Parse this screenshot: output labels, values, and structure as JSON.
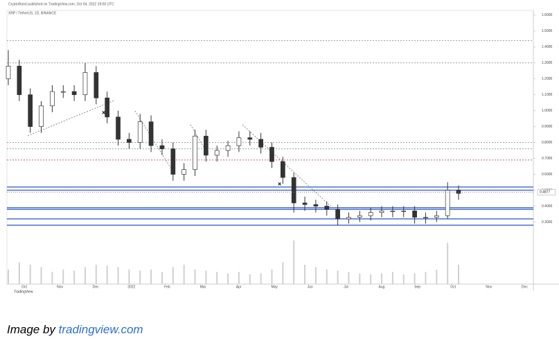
{
  "chart_data": {
    "type": "candlestick",
    "header": "CryptoRand published on TradingView.com, Oct 04, 2022 19:06 UTC",
    "symbol": "XRP / TetherUS, 1D, BINANCE",
    "brand": "TradingView",
    "credit_prefix": "Image by",
    "credit_site": "tradingview.com",
    "open": [
      1.2,
      1.28,
      1.1,
      0.9,
      1.03,
      1.12,
      1.12,
      1.1,
      1.24,
      1.08,
      0.96,
      0.82,
      0.8,
      0.93,
      0.78,
      0.76,
      0.6,
      0.63,
      0.84,
      0.72,
      0.75,
      0.78,
      0.83,
      0.82,
      0.77,
      0.68,
      0.58,
      0.42,
      0.41,
      0.4,
      0.38,
      0.32,
      0.33,
      0.34,
      0.36,
      0.37,
      0.37,
      0.37,
      0.33,
      0.33,
      0.34,
      0.5
    ],
    "high": [
      1.38,
      1.32,
      1.14,
      1.06,
      1.16,
      1.16,
      1.16,
      1.3,
      1.28,
      1.12,
      1.0,
      0.86,
      0.98,
      0.97,
      0.82,
      0.8,
      0.67,
      0.88,
      0.88,
      0.78,
      0.81,
      0.87,
      0.87,
      0.86,
      0.8,
      0.71,
      0.61,
      0.46,
      0.44,
      0.43,
      0.41,
      0.36,
      0.37,
      0.39,
      0.4,
      0.4,
      0.4,
      0.4,
      0.36,
      0.37,
      0.55,
      0.53
    ],
    "low": [
      1.16,
      1.06,
      0.86,
      0.86,
      0.99,
      1.08,
      1.06,
      1.06,
      1.04,
      0.92,
      0.78,
      0.76,
      0.76,
      0.74,
      0.72,
      0.56,
      0.56,
      0.59,
      0.68,
      0.68,
      0.71,
      0.74,
      0.78,
      0.73,
      0.64,
      0.54,
      0.36,
      0.37,
      0.36,
      0.34,
      0.28,
      0.29,
      0.3,
      0.31,
      0.33,
      0.33,
      0.33,
      0.29,
      0.29,
      0.3,
      0.32,
      0.44
    ],
    "close": [
      1.28,
      1.1,
      0.9,
      1.03,
      1.12,
      1.12,
      1.1,
      1.24,
      1.08,
      0.96,
      0.82,
      0.8,
      0.93,
      0.78,
      0.76,
      0.6,
      0.63,
      0.84,
      0.72,
      0.75,
      0.78,
      0.83,
      0.82,
      0.77,
      0.68,
      0.58,
      0.42,
      0.41,
      0.4,
      0.38,
      0.32,
      0.33,
      0.34,
      0.36,
      0.37,
      0.37,
      0.37,
      0.33,
      0.33,
      0.34,
      0.5,
      0.48
    ],
    "volume": [
      30,
      45,
      40,
      35,
      25,
      30,
      28,
      35,
      40,
      38,
      35,
      30,
      28,
      30,
      25,
      35,
      40,
      30,
      28,
      25,
      22,
      25,
      20,
      22,
      30,
      45,
      90,
      40,
      35,
      30,
      28,
      25,
      22,
      20,
      22,
      25,
      20,
      22,
      25,
      30,
      85,
      40
    ],
    "up_color": "#ffffff",
    "down_color": "#333333",
    "volume_color": "#d0d0d0",
    "ylim": [
      -0.09,
      1.63
    ],
    "y2lim": [
      0,
      100
    ],
    "yticks": [
      {
        "value": 0.3,
        "label": "0.3000"
      },
      {
        "value": 0.4,
        "label": "0.4000"
      },
      {
        "value": 0.5,
        "label": "0.5000"
      },
      {
        "value": 0.6,
        "label": "0.6000"
      },
      {
        "value": 0.7,
        "label": "0.7000"
      },
      {
        "value": 0.8,
        "label": "0.8000"
      },
      {
        "value": 0.9,
        "label": "0.9000"
      },
      {
        "value": 1.0,
        "label": "1.0000"
      },
      {
        "value": 1.1,
        "label": "1.1000"
      },
      {
        "value": 1.2,
        "label": "1.2000"
      },
      {
        "value": 1.3,
        "label": "1.3000"
      },
      {
        "value": 1.4,
        "label": "1.4000"
      },
      {
        "value": 1.5,
        "label": "1.5000"
      },
      {
        "value": 1.6,
        "label": "1.6000"
      }
    ],
    "x_labels": [
      "Oct",
      "Nov",
      "Dec",
      "2022",
      "Feb",
      "Mar",
      "Apr",
      "May",
      "Jun",
      "Jul",
      "Aug",
      "Sep",
      "Oct",
      "Nov",
      "Dec"
    ],
    "last_price": 0.4877,
    "levels": [
      {
        "value": 0.52,
        "color": "#4a6fd8",
        "style": "solid"
      },
      {
        "value": 0.5,
        "color": "#4a6fd8",
        "style": "solid"
      },
      {
        "value": 0.39,
        "color": "#4a6fd8",
        "style": "solid"
      },
      {
        "value": 0.38,
        "color": "#4a6fd8",
        "style": "solid"
      },
      {
        "value": 0.32,
        "color": "#4a6fd8",
        "style": "solid"
      },
      {
        "value": 0.28,
        "color": "#4a6fd8",
        "style": "solid"
      },
      {
        "value": 1.44,
        "color": "#999999",
        "style": "dotted"
      },
      {
        "value": 1.3,
        "color": "#999999",
        "style": "dotted"
      },
      {
        "value": 0.8,
        "color": "#999999",
        "style": "dotted"
      },
      {
        "value": 0.76,
        "color": "#999999",
        "style": "dotted"
      },
      {
        "value": 0.69,
        "color": "#d06060",
        "style": "dotted"
      }
    ]
  }
}
